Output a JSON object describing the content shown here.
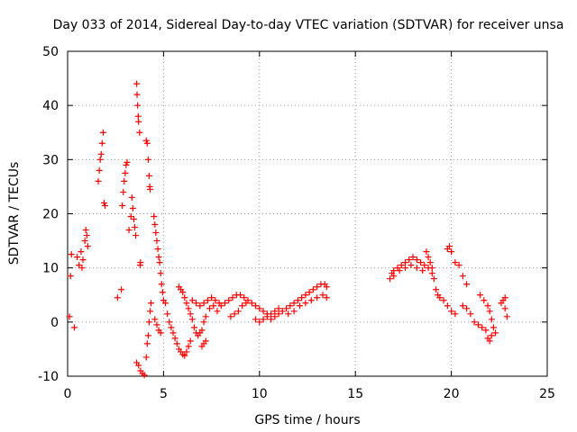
{
  "chart_data": {
    "type": "scatter",
    "title": "Day 033 of 2014, Sidereal Day-to-day VTEC variation (SDTVAR) for receiver unsa",
    "xlabel": "GPS time / hours",
    "ylabel": "SDTVAR / TECUs",
    "xlim": [
      0,
      25
    ],
    "ylim": [
      -10,
      50
    ],
    "xticks": [
      0,
      5,
      10,
      15,
      20,
      25
    ],
    "yticks": [
      -10,
      0,
      10,
      20,
      30,
      40,
      50
    ],
    "grid": true,
    "marker": "+",
    "color": "#ff0000",
    "series": [
      {
        "name": "SDTVAR",
        "points": [
          [
            0.1,
            1.0
          ],
          [
            0.15,
            8.5
          ],
          [
            0.2,
            12.5
          ],
          [
            0.35,
            -1.0
          ],
          [
            0.5,
            12.0
          ],
          [
            0.6,
            10.5
          ],
          [
            0.7,
            13.0
          ],
          [
            0.75,
            10.0
          ],
          [
            0.8,
            11.5
          ],
          [
            0.9,
            15.0
          ],
          [
            0.95,
            17.0
          ],
          [
            1.0,
            16.0
          ],
          [
            1.05,
            14.0
          ],
          [
            1.6,
            26.0
          ],
          [
            1.65,
            28.0
          ],
          [
            1.7,
            30.0
          ],
          [
            1.75,
            31.0
          ],
          [
            1.8,
            33.0
          ],
          [
            1.85,
            35.0
          ],
          [
            1.9,
            22.0
          ],
          [
            1.95,
            21.5
          ],
          [
            2.6,
            4.5
          ],
          [
            2.8,
            6.0
          ],
          [
            2.85,
            21.5
          ],
          [
            2.9,
            24.0
          ],
          [
            2.95,
            26.0
          ],
          [
            3.0,
            27.5
          ],
          [
            3.05,
            29.0
          ],
          [
            3.1,
            29.5
          ],
          [
            3.2,
            17.0
          ],
          [
            3.3,
            19.5
          ],
          [
            3.35,
            23.0
          ],
          [
            3.4,
            21.0
          ],
          [
            3.45,
            19.0
          ],
          [
            3.5,
            17.5
          ],
          [
            3.55,
            16.0
          ],
          [
            3.6,
            44.0
          ],
          [
            3.62,
            42.0
          ],
          [
            3.65,
            40.0
          ],
          [
            3.68,
            38.0
          ],
          [
            3.7,
            37.0
          ],
          [
            3.75,
            35.0
          ],
          [
            3.78,
            10.5
          ],
          [
            3.8,
            11.0
          ],
          [
            3.6,
            -7.5
          ],
          [
            3.7,
            -8.0
          ],
          [
            3.8,
            -9.0
          ],
          [
            3.9,
            -9.5
          ],
          [
            4.0,
            -9.8
          ],
          [
            4.1,
            -6.5
          ],
          [
            4.15,
            -4.0
          ],
          [
            4.2,
            -2.5
          ],
          [
            4.25,
            0.0
          ],
          [
            4.3,
            2.0
          ],
          [
            4.35,
            3.5
          ],
          [
            4.1,
            33.5
          ],
          [
            4.15,
            33.0
          ],
          [
            4.2,
            30.0
          ],
          [
            4.25,
            27.0
          ],
          [
            4.28,
            25.0
          ],
          [
            4.3,
            24.5
          ],
          [
            4.5,
            19.5
          ],
          [
            4.55,
            18.0
          ],
          [
            4.6,
            16.5
          ],
          [
            4.65,
            15.0
          ],
          [
            4.7,
            13.5
          ],
          [
            4.75,
            12.0
          ],
          [
            4.8,
            11.0
          ],
          [
            4.85,
            9.0
          ],
          [
            4.9,
            7.0
          ],
          [
            4.95,
            5.5
          ],
          [
            5.0,
            4.0
          ],
          [
            4.55,
            0.5
          ],
          [
            4.65,
            -0.5
          ],
          [
            4.75,
            -1.5
          ],
          [
            4.85,
            -2.0
          ],
          [
            5.1,
            3.5
          ],
          [
            5.2,
            1.5
          ],
          [
            5.3,
            0.0
          ],
          [
            5.4,
            -1.0
          ],
          [
            5.5,
            -2.0
          ],
          [
            5.6,
            -3.0
          ],
          [
            5.7,
            -4.0
          ],
          [
            5.8,
            -5.0
          ],
          [
            5.9,
            -5.5
          ],
          [
            6.0,
            -6.0
          ],
          [
            6.1,
            -6.2
          ],
          [
            6.2,
            -5.5
          ],
          [
            6.3,
            -4.5
          ],
          [
            6.4,
            -3.5
          ],
          [
            5.8,
            6.5
          ],
          [
            5.9,
            6.0
          ],
          [
            6.0,
            5.5
          ],
          [
            6.1,
            4.5
          ],
          [
            6.2,
            3.5
          ],
          [
            6.3,
            2.5
          ],
          [
            6.4,
            1.5
          ],
          [
            6.5,
            0.5
          ],
          [
            6.6,
            -1.0
          ],
          [
            6.7,
            -2.0
          ],
          [
            6.8,
            -2.5
          ],
          [
            6.9,
            -2.0
          ],
          [
            7.0,
            -1.5
          ],
          [
            7.1,
            0.0
          ],
          [
            7.2,
            1.0
          ],
          [
            6.5,
            4.0
          ],
          [
            6.7,
            3.5
          ],
          [
            6.9,
            3.0
          ],
          [
            7.1,
            3.5
          ],
          [
            7.3,
            4.0
          ],
          [
            7.5,
            4.5
          ],
          [
            7.7,
            4.0
          ],
          [
            7.9,
            3.5
          ],
          [
            7.0,
            -4.5
          ],
          [
            7.1,
            -4.0
          ],
          [
            7.2,
            -3.5
          ],
          [
            7.4,
            2.5
          ],
          [
            7.6,
            3.0
          ],
          [
            7.8,
            2.0
          ],
          [
            8.0,
            3.0
          ],
          [
            8.2,
            3.5
          ],
          [
            8.4,
            4.0
          ],
          [
            8.6,
            4.5
          ],
          [
            8.8,
            5.0
          ],
          [
            9.0,
            5.0
          ],
          [
            9.2,
            4.5
          ],
          [
            9.4,
            4.0
          ],
          [
            9.6,
            3.5
          ],
          [
            9.8,
            3.0
          ],
          [
            10.0,
            2.5
          ],
          [
            10.2,
            2.0
          ],
          [
            10.4,
            1.5
          ],
          [
            10.6,
            1.5
          ],
          [
            10.8,
            2.0
          ],
          [
            11.0,
            2.5
          ],
          [
            8.5,
            1.0
          ],
          [
            8.7,
            1.5
          ],
          [
            8.9,
            2.0
          ],
          [
            9.1,
            3.0
          ],
          [
            9.3,
            3.5
          ],
          [
            9.8,
            0.5
          ],
          [
            10.0,
            0.0
          ],
          [
            10.2,
            0.5
          ],
          [
            10.4,
            1.0
          ],
          [
            10.6,
            0.5
          ],
          [
            10.8,
            1.0
          ],
          [
            11.0,
            1.5
          ],
          [
            11.2,
            2.0
          ],
          [
            11.4,
            2.5
          ],
          [
            11.6,
            3.0
          ],
          [
            11.8,
            3.5
          ],
          [
            12.0,
            4.0
          ],
          [
            12.2,
            4.5
          ],
          [
            12.4,
            5.0
          ],
          [
            12.6,
            5.5
          ],
          [
            12.8,
            6.0
          ],
          [
            13.0,
            6.5
          ],
          [
            13.2,
            7.0
          ],
          [
            13.4,
            7.0
          ],
          [
            13.5,
            6.5
          ],
          [
            11.5,
            1.5
          ],
          [
            11.8,
            2.0
          ],
          [
            12.1,
            3.0
          ],
          [
            12.4,
            3.5
          ],
          [
            12.7,
            4.0
          ],
          [
            13.0,
            4.5
          ],
          [
            13.3,
            5.0
          ],
          [
            13.5,
            4.5
          ],
          [
            16.8,
            8.0
          ],
          [
            16.9,
            9.0
          ],
          [
            17.0,
            9.5
          ],
          [
            17.2,
            10.0
          ],
          [
            17.4,
            10.5
          ],
          [
            17.6,
            11.0
          ],
          [
            17.8,
            11.5
          ],
          [
            18.0,
            12.0
          ],
          [
            18.2,
            11.5
          ],
          [
            18.4,
            11.0
          ],
          [
            18.6,
            10.5
          ],
          [
            18.8,
            10.0
          ],
          [
            19.0,
            9.0
          ],
          [
            17.0,
            8.5
          ],
          [
            17.3,
            9.5
          ],
          [
            17.6,
            10.0
          ],
          [
            17.9,
            10.5
          ],
          [
            18.2,
            10.0
          ],
          [
            18.5,
            9.5
          ],
          [
            18.7,
            13.0
          ],
          [
            18.8,
            12.0
          ],
          [
            18.9,
            11.0
          ],
          [
            19.0,
            10.0
          ],
          [
            19.1,
            8.0
          ],
          [
            19.2,
            6.0
          ],
          [
            19.3,
            5.0
          ],
          [
            19.4,
            4.5
          ],
          [
            19.6,
            4.0
          ],
          [
            19.8,
            3.0
          ],
          [
            20.0,
            2.0
          ],
          [
            20.2,
            1.5
          ],
          [
            19.8,
            13.5
          ],
          [
            19.9,
            14.0
          ],
          [
            20.0,
            13.0
          ],
          [
            20.2,
            11.0
          ],
          [
            20.4,
            10.5
          ],
          [
            20.6,
            8.5
          ],
          [
            20.8,
            7.0
          ],
          [
            20.6,
            3.0
          ],
          [
            20.8,
            2.5
          ],
          [
            21.0,
            1.5
          ],
          [
            21.2,
            0.0
          ],
          [
            21.4,
            -0.5
          ],
          [
            21.6,
            -1.0
          ],
          [
            21.8,
            -1.5
          ],
          [
            21.5,
            5.0
          ],
          [
            21.7,
            4.0
          ],
          [
            21.9,
            3.0
          ],
          [
            22.0,
            2.0
          ],
          [
            22.1,
            0.5
          ],
          [
            22.2,
            -1.0
          ],
          [
            22.3,
            -2.0
          ],
          [
            21.9,
            -3.0
          ],
          [
            22.0,
            -3.5
          ],
          [
            22.1,
            -2.5
          ],
          [
            22.6,
            3.5
          ],
          [
            22.7,
            4.0
          ],
          [
            22.8,
            4.5
          ],
          [
            22.8,
            2.5
          ],
          [
            22.9,
            1.0
          ]
        ]
      }
    ]
  }
}
